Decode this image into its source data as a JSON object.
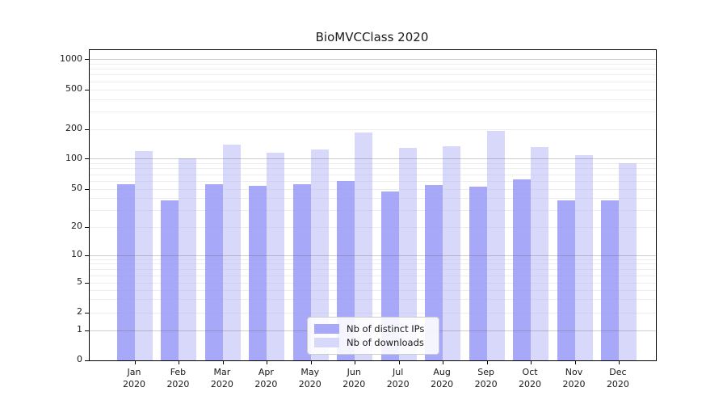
{
  "title": "BioMVCClass 2020",
  "colors": {
    "ips_bar": "rgba(146,146,246,0.8)",
    "downloads_bar": "rgba(177,177,245,0.5)",
    "ips_solid": "#a8a8f8",
    "downloads_solid": "#d8d8fa",
    "grid_minor": "#ededed",
    "grid_major": "#c8c8c8",
    "axis": "#000000"
  },
  "legend": {
    "items": [
      {
        "label": "Nb of distinct IPs",
        "color_key": "ips_solid"
      },
      {
        "label": "Nb of downloads",
        "color_key": "downloads_solid"
      }
    ]
  },
  "chart_data": {
    "type": "bar",
    "title": "BioMVCClass 2020",
    "categories": [
      "Jan\n2020",
      "Feb\n2020",
      "Mar\n2020",
      "Apr\n2020",
      "May\n2020",
      "Jun\n2020",
      "Jul\n2020",
      "Aug\n2020",
      "Sep\n2020",
      "Oct\n2020",
      "Nov\n2020",
      "Dec\n2020"
    ],
    "series": [
      {
        "name": "Nb of distinct IPs",
        "values": [
          56,
          38,
          56,
          54,
          56,
          61,
          47,
          55,
          53,
          63,
          38,
          38
        ]
      },
      {
        "name": "Nb of downloads",
        "values": [
          120,
          101,
          139,
          116,
          124,
          185,
          130,
          135,
          194,
          133,
          109,
          91
        ]
      }
    ],
    "yscale": "symlog",
    "yticks": [
      0,
      1,
      2,
      5,
      10,
      20,
      50,
      100,
      200,
      500,
      1000
    ],
    "minor_grid_values": [
      2,
      3,
      4,
      5,
      6,
      7,
      8,
      9,
      20,
      30,
      40,
      50,
      60,
      70,
      80,
      90,
      200,
      300,
      400,
      500,
      600,
      700,
      800,
      900
    ],
    "major_grid_values": [
      1,
      10,
      100,
      1000
    ],
    "ylim": [
      0,
      1250
    ],
    "grid": true,
    "legend_position": "lower center",
    "xlabel": "",
    "ylabel": ""
  }
}
